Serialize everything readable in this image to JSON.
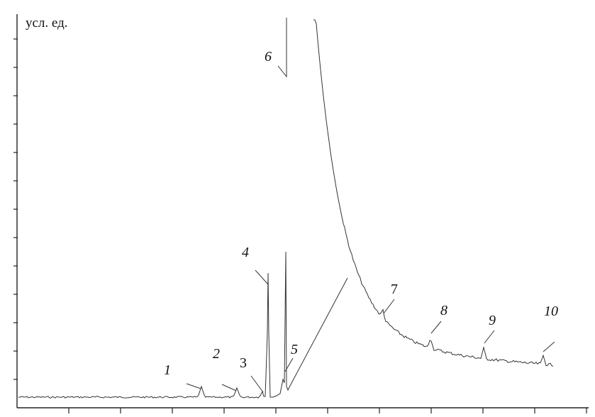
{
  "chart_data": {
    "type": "line",
    "title": "",
    "ylabel": "усл. ед.",
    "xlabel": "",
    "grid": false,
    "xlim": [
      0,
      11.5
    ],
    "ylim": [
      0,
      14
    ],
    "y_tick_count": 14,
    "x_tick_count": 11,
    "peaks": [
      {
        "label": "1",
        "italic": true
      },
      {
        "label": "2",
        "italic": true
      },
      {
        "label": "3",
        "italic": false
      },
      {
        "label": "4",
        "italic": true
      },
      {
        "label": "5",
        "italic": true
      },
      {
        "label": "6",
        "italic": true
      },
      {
        "label": "7",
        "italic": false
      },
      {
        "label": "8",
        "italic": true
      },
      {
        "label": "9",
        "italic": true
      },
      {
        "label": "10",
        "italic": true
      }
    ]
  }
}
